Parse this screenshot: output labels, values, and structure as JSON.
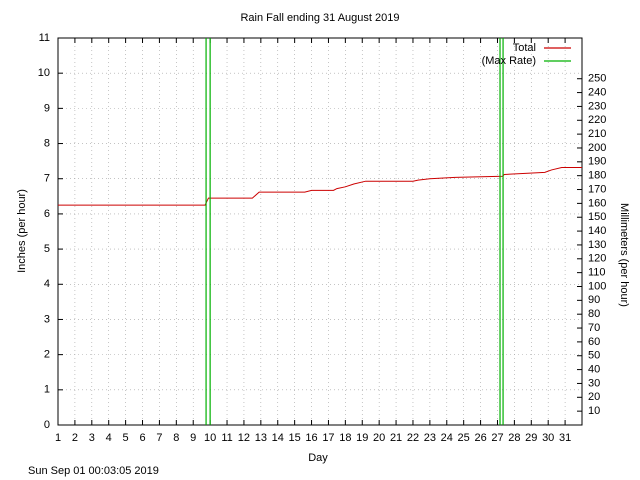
{
  "chart_data": {
    "type": "line",
    "title": "Rain Fall ending 31 August 2019",
    "x_label": "Day",
    "y_label": "Inches (per hour)",
    "y2_label": "Millimeters (per hour)",
    "footer": "Sun Sep 01 00:03:05 2019",
    "xlim": [
      1,
      32
    ],
    "xticks": [
      1,
      2,
      3,
      4,
      5,
      6,
      7,
      8,
      9,
      10,
      11,
      12,
      13,
      14,
      15,
      16,
      17,
      18,
      19,
      20,
      21,
      22,
      23,
      24,
      25,
      26,
      27,
      28,
      29,
      30,
      31
    ],
    "ylim": [
      0,
      11
    ],
    "yticks": [
      0,
      1,
      2,
      3,
      4,
      5,
      6,
      7,
      8,
      9,
      10,
      11
    ],
    "y2lim": [
      0,
      279.4
    ],
    "y2ticks": [
      10,
      20,
      30,
      40,
      50,
      60,
      70,
      80,
      90,
      100,
      110,
      120,
      130,
      140,
      150,
      160,
      170,
      180,
      190,
      200,
      210,
      220,
      230,
      240,
      250
    ],
    "grid": true,
    "legend": "top-right",
    "series": [
      {
        "name": "Total",
        "color": "#cc0000",
        "style": "line",
        "x": [
          1,
          9.7,
          9.9,
          12.5,
          12.9,
          15.6,
          16,
          17.3,
          17.5,
          18,
          18.5,
          19.2,
          22,
          22.3,
          23,
          24.5,
          27.3,
          27.4,
          28.5,
          29.8,
          30.2,
          30.8,
          32
        ],
        "values": [
          6.25,
          6.25,
          6.45,
          6.45,
          6.62,
          6.62,
          6.67,
          6.67,
          6.72,
          6.77,
          6.85,
          6.93,
          6.93,
          6.96,
          7.0,
          7.04,
          7.07,
          7.12,
          7.15,
          7.18,
          7.25,
          7.32,
          7.32
        ]
      },
      {
        "name": "(Max Rate)",
        "color": "#00b000",
        "style": "impulses",
        "x": [
          9.76,
          10.0,
          27.15,
          27.33
        ],
        "values": [
          11,
          11,
          11,
          11
        ]
      }
    ]
  }
}
